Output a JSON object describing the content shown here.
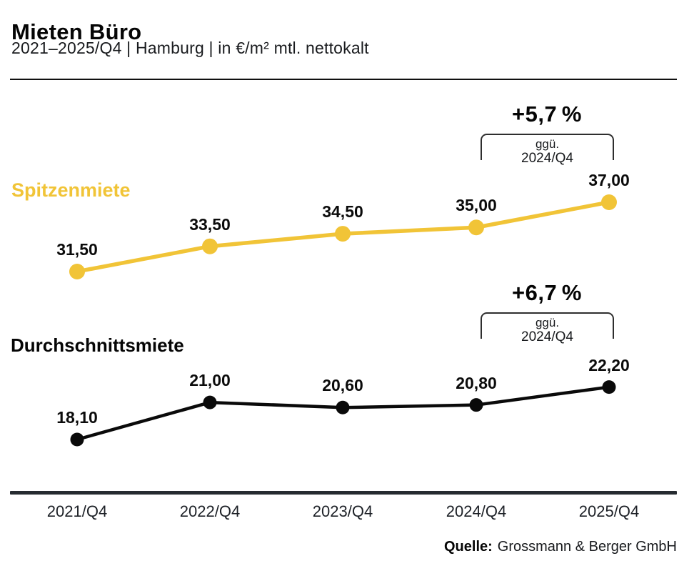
{
  "header": {
    "title": "Mieten Büro",
    "subtitle": "2021–2025/Q4 | Hamburg | in €/m² mtl. nettokalt"
  },
  "source": {
    "label": "Quelle:",
    "text": "Grossmann & Berger GmbH"
  },
  "colors": {
    "spitzenmiete": "#F1C437",
    "durchschnittsmiete": "#0a0a0a",
    "axis": "#262B31"
  },
  "chart_data": {
    "type": "line",
    "title": "Mieten Büro",
    "subtitle": "2021–2025/Q4 | Hamburg | in €/m² mtl. nettokalt",
    "unit": "€/m² mtl. nettokalt",
    "xlabel": "",
    "ylabel": "€/m² mtl. nettokalt",
    "grid": false,
    "legend_position": "inline-left",
    "categories": [
      "2021/Q4",
      "2022/Q4",
      "2023/Q4",
      "2024/Q4",
      "2025/Q4"
    ],
    "series": [
      {
        "name": "Spitzenmiete",
        "color": "#F1C437",
        "values": [
          31.5,
          33.5,
          34.5,
          35.0,
          37.0
        ],
        "value_labels": [
          "31,50",
          "33,50",
          "34,50",
          "35,00",
          "37,00"
        ],
        "annotation": {
          "pct": "+5,7 %",
          "ref_line1": "ggü.",
          "ref_line2": "2024/Q4"
        }
      },
      {
        "name": "Durchschnittsmiete",
        "color": "#0a0a0a",
        "values": [
          18.1,
          21.0,
          20.6,
          20.8,
          22.2
        ],
        "value_labels": [
          "18,10",
          "21,00",
          "20,60",
          "20,80",
          "22,20"
        ],
        "annotation": {
          "pct": "+6,7 %",
          "ref_line1": "ggü.",
          "ref_line2": "2024/Q4"
        }
      }
    ]
  }
}
